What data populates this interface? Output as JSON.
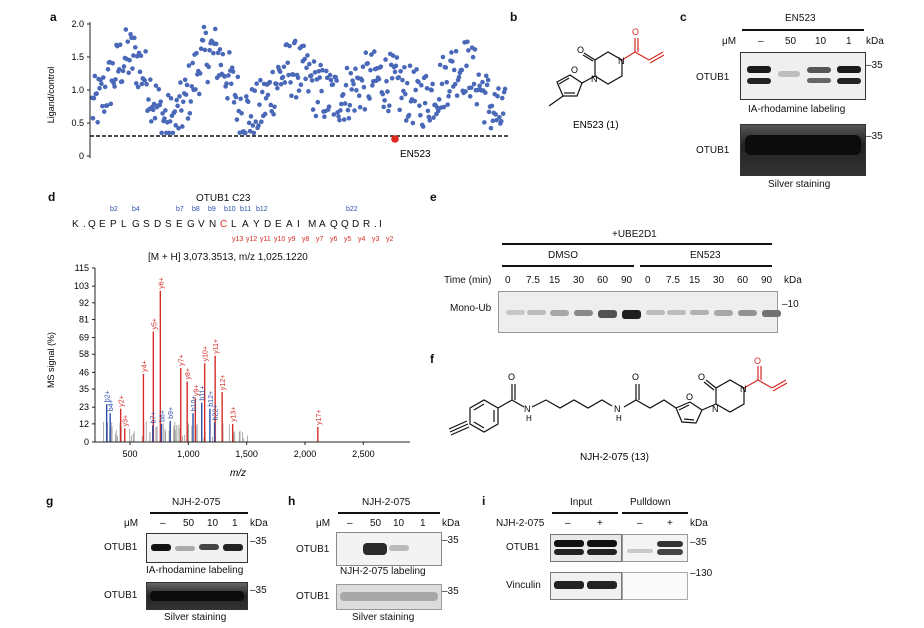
{
  "panels": [
    "a",
    "b",
    "c",
    "d",
    "e",
    "f",
    "g",
    "h",
    "i"
  ],
  "colors": {
    "point": "#4a68b8",
    "hit": "#e0281e",
    "red": "#d62b26",
    "blue": "#2b4fa8",
    "warhead": "#e0281e"
  },
  "panel_a": {
    "ylabel": "Ligand/control",
    "yticks": [
      "0",
      "0.5",
      "1.0",
      "1.5",
      "2.0"
    ],
    "hit_label": "EN523"
  },
  "panel_b": {
    "caption": "EN523 (1)"
  },
  "panel_c": {
    "compound": "EN523",
    "um": "μM",
    "kda": "kDa",
    "lanes": [
      "–",
      "50",
      "10",
      "1"
    ],
    "protein": "OTUB1",
    "marker": "–35",
    "label_top": "IA-rhodamine labeling",
    "label_bottom": "Silver staining"
  },
  "panel_d": {
    "title": "OTUB1 C23",
    "sequence": [
      "K",
      ".",
      "Q",
      "E",
      "P",
      "L",
      "G",
      "S",
      "D",
      "S",
      "E",
      "G",
      "V",
      "N",
      "C",
      "L",
      "A",
      "Y",
      "D",
      "E",
      "A",
      "I",
      "M",
      "A",
      "Q",
      "Q",
      "D",
      "R",
      ".",
      "I"
    ],
    "b_ions": [
      "b2",
      "b4",
      "b7",
      "b8",
      "b9",
      "b10",
      "b11",
      "b12",
      "b22"
    ],
    "y_ions": [
      "y13",
      "y12",
      "y11",
      "y10",
      "y9",
      "y8",
      "y7",
      "y6",
      "y5",
      "y4",
      "y3",
      "y2"
    ],
    "mass": "[M + H] 3,073.3513, m/z 1,025.1220",
    "ylabel": "MS signal (%)",
    "xlabel": "m/z",
    "yticks": [
      "0",
      "12",
      "23",
      "35",
      "46",
      "58",
      "69",
      "81",
      "92",
      "103",
      "115"
    ],
    "xticks": [
      "500",
      "1,000",
      "1,500",
      "2,000",
      "2,500"
    ]
  },
  "panel_e": {
    "top": "+UBE2D1",
    "group1": "DMSO",
    "group2": "EN523",
    "time_label": "Time (min)",
    "times": [
      "0",
      "7.5",
      "15",
      "30",
      "60",
      "90",
      "0",
      "7.5",
      "15",
      "30",
      "60",
      "90"
    ],
    "kda": "kDa",
    "row_label": "Mono-Ub",
    "marker": "–10"
  },
  "panel_f": {
    "caption": "NJH-2-075 (13)"
  },
  "panel_g": {
    "compound": "NJH-2-075",
    "um": "μM",
    "kda": "kDa",
    "lanes": [
      "–",
      "50",
      "10",
      "1"
    ],
    "protein": "OTUB1",
    "marker": "–35",
    "label_top": "IA-rhodamine labeling",
    "label_bottom": "Silver staining"
  },
  "panel_h": {
    "compound": "NJH-2-075",
    "um": "μM",
    "kda": "kDa",
    "lanes": [
      "–",
      "50",
      "10",
      "1"
    ],
    "protein": "OTUB1",
    "marker": "–35",
    "label_top": "NJH-2-075 labeling",
    "label_bottom": "Silver staining"
  },
  "panel_i": {
    "input": "Input",
    "pulldown": "Pulldown",
    "row": "NJH-2-075",
    "signs": [
      "–",
      "+",
      "–",
      "+"
    ],
    "kda": "kDa",
    "protein1": "OTUB1",
    "marker1": "–35",
    "protein2": "Vinculin",
    "marker2": "–130"
  },
  "chart_data": [
    {
      "type": "scatter",
      "panel": "a",
      "ylabel": "Ligand/control",
      "ylim": [
        0,
        2.0
      ],
      "threshold": 0.3,
      "hit": {
        "label": "EN523",
        "value": 0.25
      },
      "n_points": 440
    },
    {
      "type": "bar",
      "panel": "d",
      "xlabel": "m/z",
      "ylabel": "MS signal (%)",
      "xlim": [
        200,
        2900
      ],
      "ylim": [
        0,
        115
      ],
      "peaks": [
        {
          "mz": 760,
          "value": 100,
          "label": "y6+",
          "color": "red"
        },
        {
          "mz": 700,
          "value": 73,
          "label": "y5+",
          "color": "red"
        },
        {
          "mz": 615,
          "value": 45,
          "label": "y4+",
          "color": "red"
        },
        {
          "mz": 935,
          "value": 49,
          "label": "y7+",
          "color": "red"
        },
        {
          "mz": 990,
          "value": 40,
          "label": "y8+",
          "color": "red"
        },
        {
          "mz": 1060,
          "value": 29,
          "label": "y9+",
          "color": "red"
        },
        {
          "mz": 1140,
          "value": 52,
          "label": "y10+",
          "color": "red"
        },
        {
          "mz": 1230,
          "value": 57,
          "label": "y11+",
          "color": "red"
        },
        {
          "mz": 1290,
          "value": 33,
          "label": "y12+",
          "color": "red"
        },
        {
          "mz": 1380,
          "value": 12,
          "label": "y13+",
          "color": "red"
        },
        {
          "mz": 420,
          "value": 22,
          "label": "y2+",
          "color": "red"
        },
        {
          "mz": 455,
          "value": 9,
          "label": "y3+",
          "color": "red"
        },
        {
          "mz": 2110,
          "value": 10,
          "label": "y17+",
          "color": "red"
        },
        {
          "mz": 300,
          "value": 25,
          "label": "b2+",
          "color": "blue"
        },
        {
          "mz": 330,
          "value": 19,
          "label": "b4+",
          "color": "blue"
        },
        {
          "mz": 695,
          "value": 11,
          "label": "b7+",
          "color": "blue"
        },
        {
          "mz": 770,
          "value": 12,
          "label": "b8+",
          "color": "blue"
        },
        {
          "mz": 845,
          "value": 14,
          "label": "b9+",
          "color": "blue"
        },
        {
          "mz": 1040,
          "value": 19,
          "label": "b10+",
          "color": "blue"
        },
        {
          "mz": 1115,
          "value": 26,
          "label": "b11+",
          "color": "blue"
        },
        {
          "mz": 1185,
          "value": 22,
          "label": "b12+",
          "color": "blue"
        },
        {
          "mz": 1225,
          "value": 13,
          "label": "b22+",
          "color": "blue"
        }
      ]
    }
  ]
}
